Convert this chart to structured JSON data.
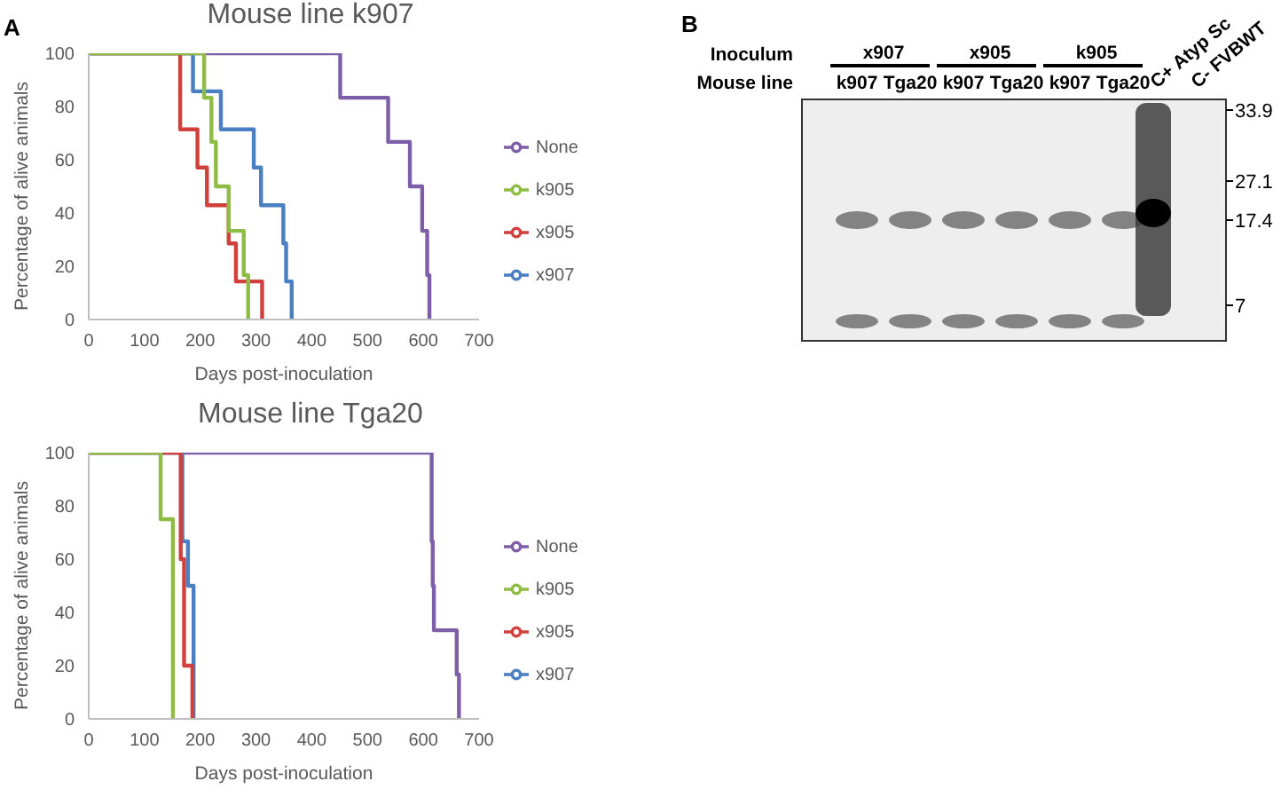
{
  "chart_data": [
    {
      "type": "step",
      "title": "Mouse line k907",
      "xlabel": "Days post-inoculation",
      "ylabel": "Percentage of alive animals",
      "annotations": [
        "A"
      ],
      "xlim": [
        0,
        700
      ],
      "xticks": [
        0,
        100,
        200,
        300,
        400,
        500,
        600,
        700
      ],
      "ylim": [
        0,
        100
      ],
      "yticks": [
        0,
        20,
        40,
        60,
        80,
        100
      ],
      "grid": false,
      "legend": "right",
      "marker": "none",
      "line_style": "solid",
      "series": [
        {
          "name": "None",
          "color": "#7e5ea8",
          "x": [
            0,
            451,
            537,
            576,
            598,
            607,
            611
          ],
          "values": [
            100,
            83.3,
            66.7,
            50,
            33.3,
            16.7,
            0
          ]
        },
        {
          "name": "x907",
          "color": "#4a7fc1",
          "x": [
            0,
            187,
            237,
            296,
            309,
            349,
            354,
            364
          ],
          "values": [
            100,
            85.7,
            71.4,
            57.1,
            42.9,
            28.6,
            14.3,
            0
          ]
        },
        {
          "name": "x905",
          "color": "#d0413e",
          "x": [
            0,
            164,
            195,
            212,
            251,
            264,
            311
          ],
          "values": [
            100,
            71.4,
            57.1,
            42.9,
            28.6,
            14.3,
            0
          ]
        },
        {
          "name": "k905",
          "color": "#8fbc45",
          "x": [
            0,
            207,
            220,
            228,
            251,
            278,
            286
          ],
          "values": [
            100,
            83.3,
            66.7,
            50,
            33.3,
            16.7,
            0
          ]
        }
      ]
    },
    {
      "type": "step",
      "title": "Mouse line Tga20",
      "xlabel": "Days post-inoculation",
      "ylabel": "Percentage of alive animals",
      "xlim": [
        0,
        700
      ],
      "xticks": [
        0,
        100,
        200,
        300,
        400,
        500,
        600,
        700
      ],
      "ylim": [
        0,
        100
      ],
      "yticks": [
        0,
        20,
        40,
        60,
        80,
        100
      ],
      "grid": false,
      "legend": "right",
      "marker": "none",
      "line_style": "solid",
      "series": [
        {
          "name": "None",
          "color": "#7e5ea8",
          "x": [
            0,
            615,
            617,
            619,
            660,
            664
          ],
          "values": [
            100,
            66.7,
            50,
            33.3,
            16.7,
            0
          ]
        },
        {
          "name": "x907",
          "color": "#4a7fc1",
          "x": [
            0,
            168,
            178,
            188
          ],
          "values": [
            100,
            66.7,
            50,
            0
          ]
        },
        {
          "name": "x905",
          "color": "#d0413e",
          "x": [
            0,
            165,
            171,
            186
          ],
          "values": [
            100,
            60,
            20,
            0
          ]
        },
        {
          "name": "k905",
          "color": "#8fbc45",
          "x": [
            0,
            129,
            151
          ],
          "values": [
            100,
            75,
            0
          ]
        }
      ]
    },
    {
      "type": "other",
      "annotations": [
        "B",
        "Inoculum",
        "Mouse line",
        "x907",
        "x905",
        "k905",
        "k907",
        "Tga20",
        "k907",
        "Tga20",
        "k907",
        "Tga20",
        "C+ Atyp Sc",
        "C- FVBWT",
        "33.9",
        "27.1",
        "17.4",
        "7"
      ]
    }
  ]
}
